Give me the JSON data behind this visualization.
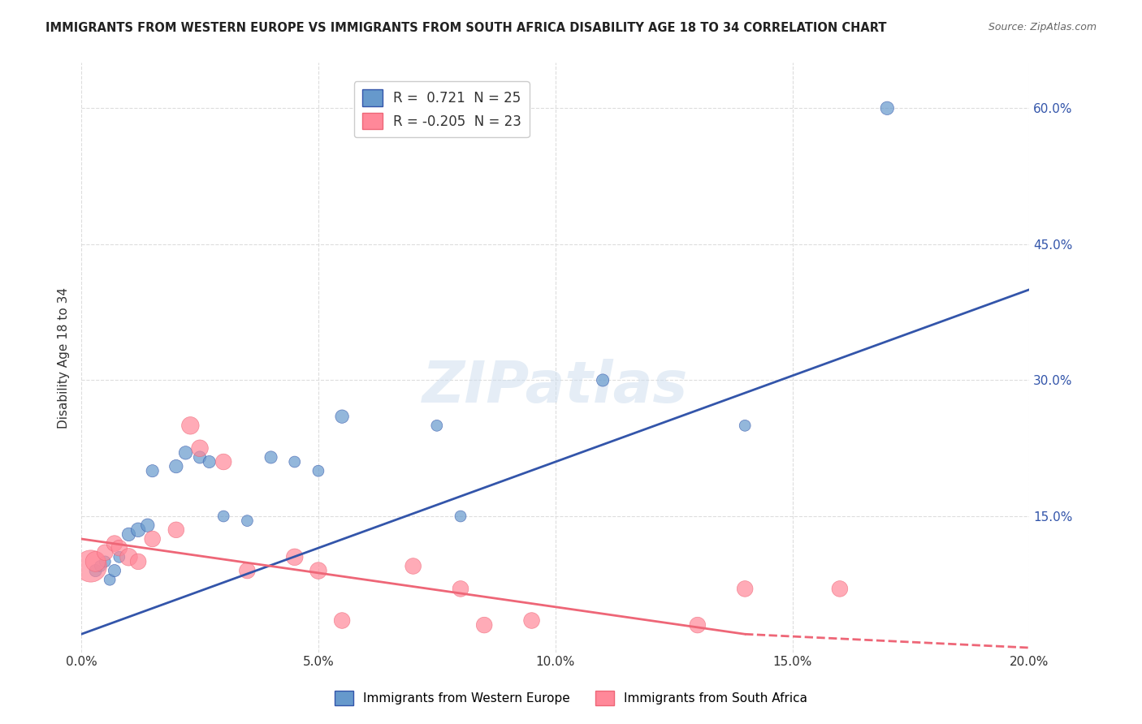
{
  "title": "IMMIGRANTS FROM WESTERN EUROPE VS IMMIGRANTS FROM SOUTH AFRICA DISABILITY AGE 18 TO 34 CORRELATION CHART",
  "source": "Source: ZipAtlas.com",
  "xlabel_bottom": "",
  "ylabel": "Disability Age 18 to 34",
  "x_tick_labels": [
    "0.0%",
    "5.0%",
    "10.0%",
    "15.0%",
    "20.0%"
  ],
  "x_tick_vals": [
    0.0,
    5.0,
    10.0,
    15.0,
    20.0
  ],
  "y_tick_labels": [
    "15.0%",
    "30.0%",
    "45.0%",
    "60.0%"
  ],
  "y_tick_vals": [
    15.0,
    30.0,
    45.0,
    60.0
  ],
  "xlim": [
    0.0,
    20.0
  ],
  "ylim": [
    0.0,
    65.0
  ],
  "background_color": "#ffffff",
  "watermark_text": "ZIPatlas",
  "blue_R": 0.721,
  "blue_N": 25,
  "pink_R": -0.205,
  "pink_N": 23,
  "blue_color": "#6699cc",
  "pink_color": "#ff8899",
  "blue_line_color": "#3355aa",
  "pink_line_color": "#ee6677",
  "blue_scatter": {
    "x": [
      0.3,
      0.4,
      0.5,
      0.6,
      0.7,
      0.8,
      1.0,
      1.2,
      1.4,
      1.5,
      2.0,
      2.2,
      2.5,
      2.7,
      3.0,
      3.5,
      4.0,
      4.5,
      5.0,
      5.5,
      7.5,
      8.0,
      11.0,
      14.0,
      17.0
    ],
    "y": [
      9.0,
      9.5,
      10.0,
      8.0,
      9.0,
      10.5,
      13.0,
      13.5,
      14.0,
      20.0,
      20.5,
      22.0,
      21.5,
      21.0,
      15.0,
      14.5,
      21.5,
      21.0,
      20.0,
      26.0,
      25.0,
      15.0,
      30.0,
      25.0,
      60.0
    ],
    "sizes": [
      30,
      25,
      25,
      25,
      30,
      25,
      35,
      40,
      35,
      30,
      35,
      35,
      30,
      30,
      25,
      25,
      30,
      25,
      25,
      35,
      25,
      25,
      30,
      25,
      35
    ]
  },
  "blue_line": {
    "x": [
      0.0,
      20.0
    ],
    "y": [
      2.0,
      40.0
    ]
  },
  "pink_scatter": {
    "x": [
      0.2,
      0.3,
      0.5,
      0.7,
      0.8,
      1.0,
      1.2,
      1.5,
      2.0,
      2.3,
      2.5,
      3.0,
      3.5,
      4.5,
      5.0,
      5.5,
      7.0,
      8.5,
      8.0,
      9.5,
      13.0,
      14.0,
      16.0
    ],
    "y": [
      9.5,
      10.0,
      11.0,
      12.0,
      11.5,
      10.5,
      10.0,
      12.5,
      13.5,
      25.0,
      22.5,
      21.0,
      9.0,
      10.5,
      9.0,
      3.5,
      9.5,
      3.0,
      7.0,
      3.5,
      3.0,
      7.0,
      7.0
    ],
    "sizes": [
      200,
      80,
      50,
      50,
      50,
      60,
      50,
      50,
      50,
      60,
      55,
      50,
      50,
      55,
      55,
      50,
      50,
      50,
      50,
      50,
      50,
      50,
      50
    ]
  },
  "pink_line_solid": {
    "x": [
      0.0,
      14.0
    ],
    "y": [
      12.5,
      2.0
    ]
  },
  "pink_line_dashed": {
    "x": [
      14.0,
      20.0
    ],
    "y": [
      2.0,
      0.5
    ]
  },
  "legend_blue_label": "Immigrants from Western Europe",
  "legend_pink_label": "Immigrants from South Africa",
  "grid_color": "#dddddd",
  "grid_style": "--"
}
